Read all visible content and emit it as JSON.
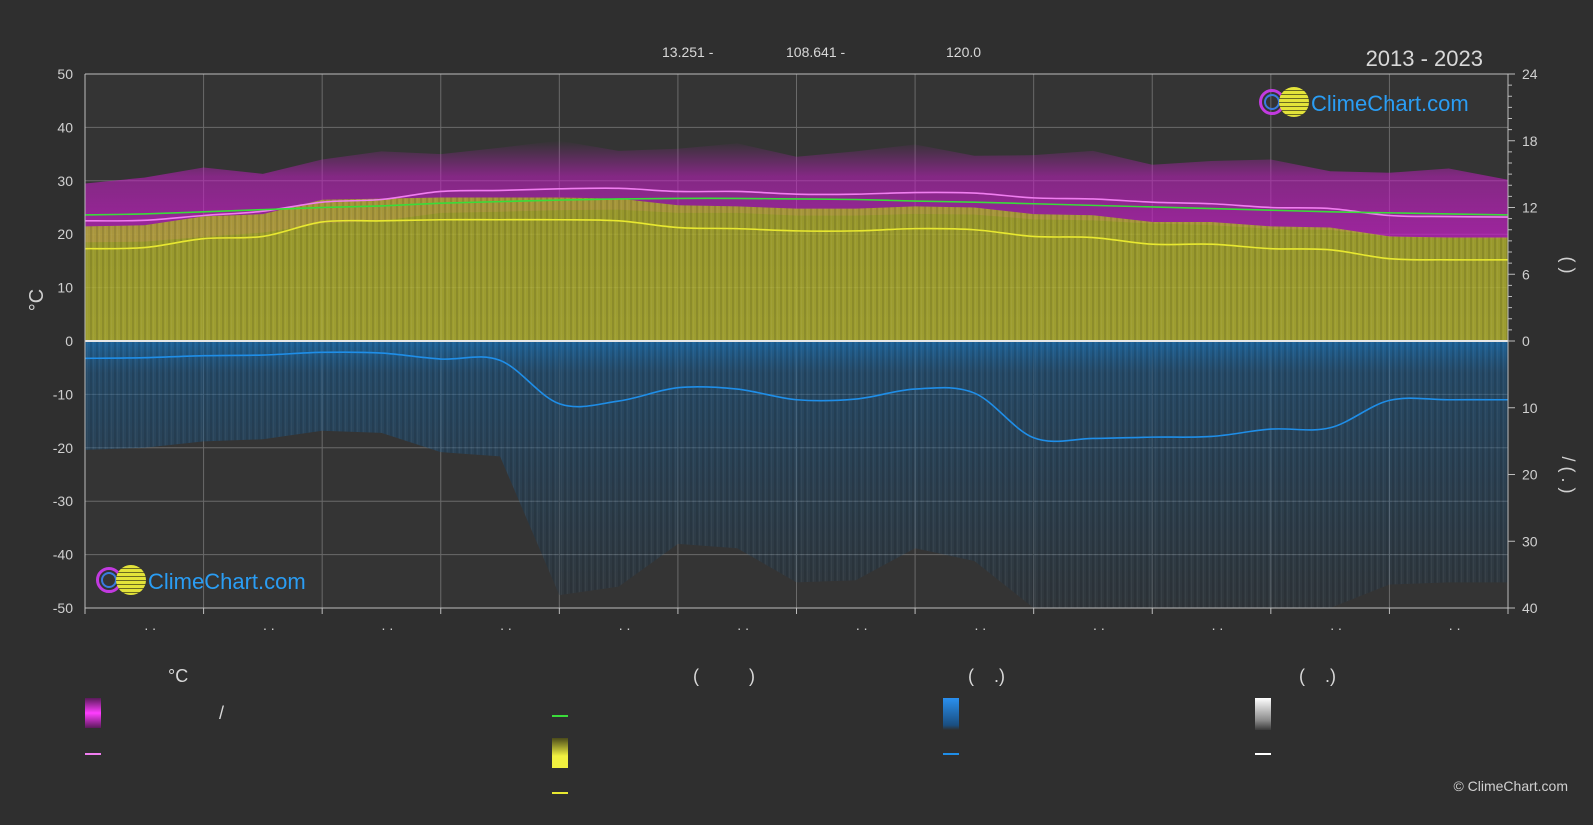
{
  "header": {
    "coord_lat": "13.251 -",
    "coord_lon": "108.641 -",
    "elevation": "120.0",
    "period": "2013 - 2023"
  },
  "logo": {
    "text": "ClimeChart.com"
  },
  "copyright": "© ClimeChart.com",
  "legend": {
    "temp_heading": "°C",
    "sun_heading": "(          )",
    "rain_heading": "(    .)",
    "snow_heading": "(    .)",
    "slash": "/"
  },
  "chart_data": {
    "type": "line",
    "ylabel_left": "°C",
    "ylabel_right_top": "(    )",
    "ylabel_right_bottom": "/    (  .  )",
    "y_left_range": [
      -50,
      50
    ],
    "y_left_ticks": [
      "50",
      "40",
      "30",
      "20",
      "10",
      "0",
      "-10",
      "-20",
      "-30",
      "-40",
      "-50"
    ],
    "y_right_top_range": [
      0,
      24
    ],
    "y_right_top_ticks": [
      "24",
      "18",
      "12",
      "6",
      "0"
    ],
    "y_right_bottom_range": [
      0,
      40
    ],
    "y_right_bottom_ticks": [
      "10",
      "20",
      "30",
      "40"
    ],
    "month_labels": [
      ". .",
      ". .",
      ". .",
      ". .",
      ". .",
      ". .",
      ". .",
      ". .",
      ". .",
      ". .",
      ". .",
      ". ."
    ],
    "x": [
      0,
      0.5,
      1,
      1.5,
      2,
      2.5,
      3,
      3.5,
      4,
      4.5,
      5,
      5.5,
      6,
      6.5,
      7,
      7.5,
      8,
      8.5,
      9,
      9.5,
      10,
      10.5,
      11,
      11.5,
      12
    ],
    "series": [
      {
        "name": "",
        "color": "#f07ef0",
        "axis": "temp",
        "values": [
          22.5,
          22.6,
          23.5,
          24.3,
          26,
          26.5,
          28,
          28.2,
          28.5,
          28.6,
          28,
          28,
          27.5,
          27.5,
          27.8,
          27.7,
          26.8,
          26.6,
          26,
          25.7,
          25,
          24.8,
          23.5,
          23.3,
          23.2
        ]
      },
      {
        "name": "",
        "color": "#3adc3a",
        "axis": "temp",
        "values": [
          23.6,
          23.8,
          24.2,
          24.6,
          25,
          25.3,
          25.8,
          26.1,
          26.4,
          26.6,
          26.7,
          26.7,
          26.6,
          26.5,
          26.2,
          26,
          25.7,
          25.4,
          25.1,
          24.8,
          24.5,
          24.2,
          24,
          23.8,
          23.6
        ]
      },
      {
        "name": "",
        "color": "#e8e830",
        "axis": "sun",
        "values": [
          8.3,
          8.4,
          9.2,
          9.4,
          10.7,
          10.8,
          10.9,
          10.9,
          10.9,
          10.8,
          10.2,
          10.1,
          9.9,
          9.9,
          10.1,
          10.0,
          9.4,
          9.3,
          8.7,
          8.7,
          8.3,
          8.2,
          7.4,
          7.3,
          7.3
        ]
      },
      {
        "name": "",
        "color": "#1f8ee8",
        "axis": "rain",
        "values": [
          2.6,
          2.5,
          2.2,
          2.1,
          1.7,
          1.8,
          2.7,
          2.9,
          9.4,
          9.0,
          7.0,
          7.2,
          8.8,
          8.7,
          7.2,
          7.8,
          14.5,
          14.6,
          14.4,
          14.3,
          13.2,
          13.0,
          8.9,
          8.8,
          8.8
        ]
      }
    ]
  }
}
